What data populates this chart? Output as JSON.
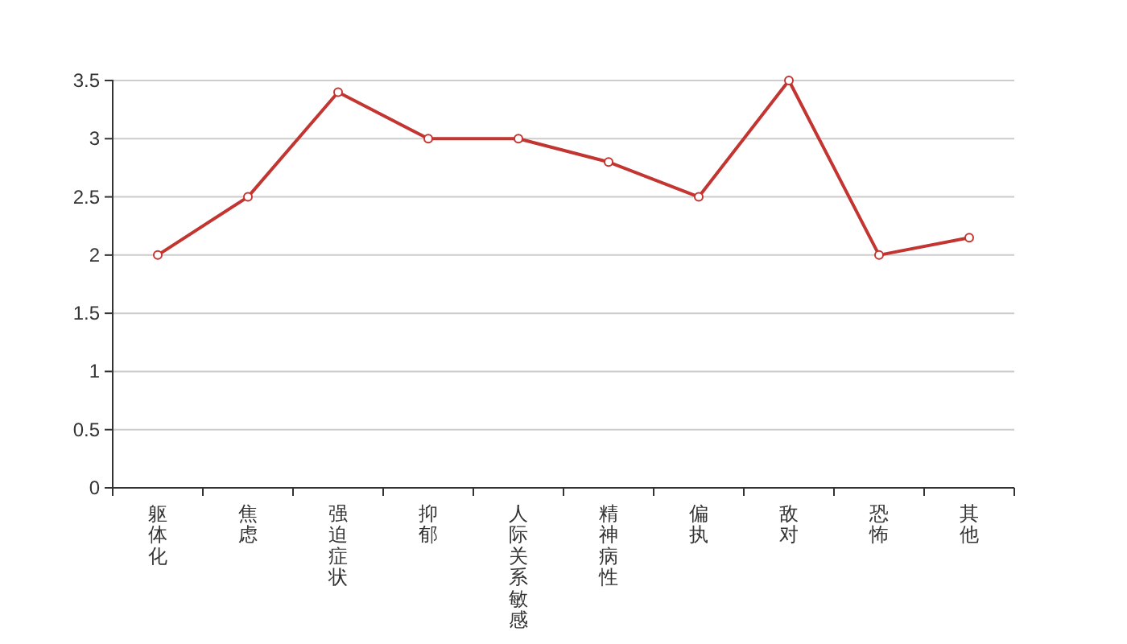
{
  "chart_data": {
    "type": "line",
    "categories": [
      "躯体化",
      "焦虑",
      "强迫症状",
      "抑郁",
      "人际关系敏感",
      "精神病性",
      "偏执",
      "敌对",
      "恐怖",
      "其他"
    ],
    "series": [
      {
        "color": "#c23531",
        "values": [
          2,
          2.5,
          3.4,
          3,
          3,
          2.8,
          2.5,
          3.5,
          2,
          2.15
        ]
      }
    ],
    "ylim": [
      0,
      3.5
    ],
    "yticks": [
      0,
      0.5,
      1,
      1.5,
      2,
      2.5,
      3,
      3.5
    ],
    "grid": "y",
    "marker": "circle",
    "line_style": "solid"
  }
}
